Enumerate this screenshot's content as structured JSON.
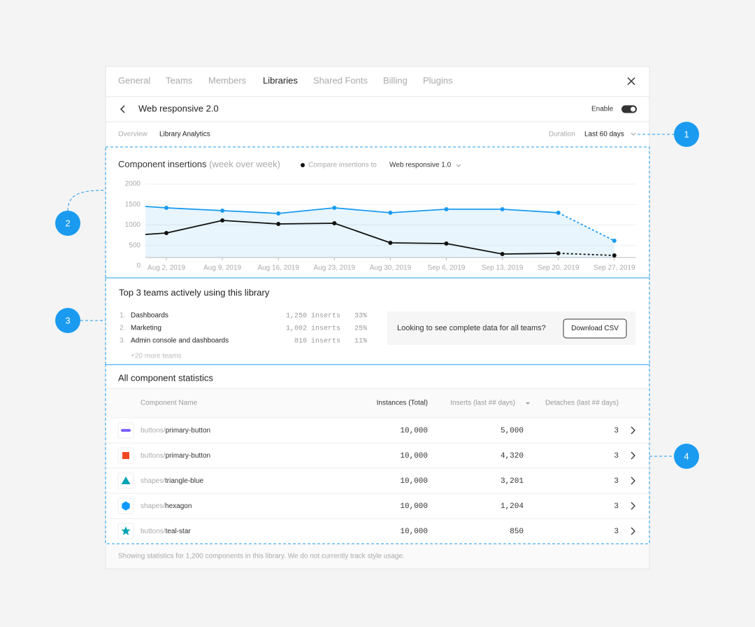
{
  "tabs": [
    "General",
    "Teams",
    "Members",
    "Libraries",
    "Shared Fonts",
    "Billing",
    "Plugins"
  ],
  "active_tab": "Libraries",
  "library": {
    "name": "Web responsive 2.0",
    "enable_label": "Enable",
    "enabled": true
  },
  "subtabs": [
    "Overview",
    "Library Analytics"
  ],
  "active_subtab": "Library Analytics",
  "duration": {
    "label": "Duration",
    "value": "Last 60 days"
  },
  "callouts": [
    "1",
    "2",
    "3",
    "4"
  ],
  "chart_data": {
    "type": "line",
    "title": "Component insertions",
    "subtitle": "(week over week)",
    "compare_label": "Compare insertions to",
    "compare_value": "Web responsive 1.0",
    "categories": [
      null,
      "Aug 2, 2019",
      "Aug 9, 2019",
      "Aug 16, 2019",
      "Aug 23, 2019",
      "Aug 30, 2019",
      "Sep 6, 2019",
      "Sep 13, 2019",
      "Sep 20, 2019",
      "Sep 27, 2019"
    ],
    "series": [
      {
        "color": "#1a9bf0",
        "values": [
          1453,
          1419,
          1350,
          1282,
          1419,
          1299,
          1385,
          1385,
          1299,
          615
        ]
      },
      {
        "color": "#111111",
        "values": [
          769,
          803,
          1111,
          1026,
          1043,
          564,
          547,
          291,
          308,
          256
        ]
      }
    ],
    "ylim": [
      0,
      2000
    ],
    "yticks": [
      0,
      500,
      1000,
      1500,
      2000
    ],
    "grid": true
  },
  "top_teams": {
    "title": "Top 3 teams actively using this library",
    "rows": [
      {
        "rank": "1.",
        "name": "Dashboards",
        "inserts": "1,250 inserts",
        "share": "33%"
      },
      {
        "rank": "2.",
        "name": "Marketing",
        "inserts": "1,002 inserts",
        "share": "25%"
      },
      {
        "rank": "3.",
        "name": "Admin console and dashboards",
        "inserts": "810 inserts",
        "share": "11%"
      }
    ],
    "more": "+20 more teams",
    "cta": "Looking to see complete data for all teams?",
    "button": "Download CSV"
  },
  "stats": {
    "title": "All component statistics",
    "columns": [
      "Component Name",
      "Instances (Total)",
      "Inserts (last ## days)",
      "Detaches (last ## days)"
    ],
    "rows": [
      {
        "prefix": "buttons/",
        "name": "primary-button",
        "instances": "10,000",
        "inserts": "5,000",
        "detaches": "3",
        "icon": "pill",
        "color": "#7b61ff"
      },
      {
        "prefix": "buttons/",
        "name": "primary-button",
        "instances": "10,000",
        "inserts": "4,320",
        "detaches": "3",
        "icon": "square",
        "color": "#f24822"
      },
      {
        "prefix": "shapes/",
        "name": "triangle-blue",
        "instances": "10,000",
        "inserts": "3,201",
        "detaches": "3",
        "icon": "triangle",
        "color": "#00a3b4"
      },
      {
        "prefix": "shapes/",
        "name": "hexagon",
        "instances": "10,000",
        "inserts": "1,204",
        "detaches": "3",
        "icon": "hexagon",
        "color": "#0d99ff"
      },
      {
        "prefix": "buttons/",
        "name": "teal-star",
        "instances": "10,000",
        "inserts": "850",
        "detaches": "3",
        "icon": "star",
        "color": "#00a3b4"
      }
    ],
    "footer": "Showing statistics for 1,200 components in this library. We do not currently track style usage."
  }
}
